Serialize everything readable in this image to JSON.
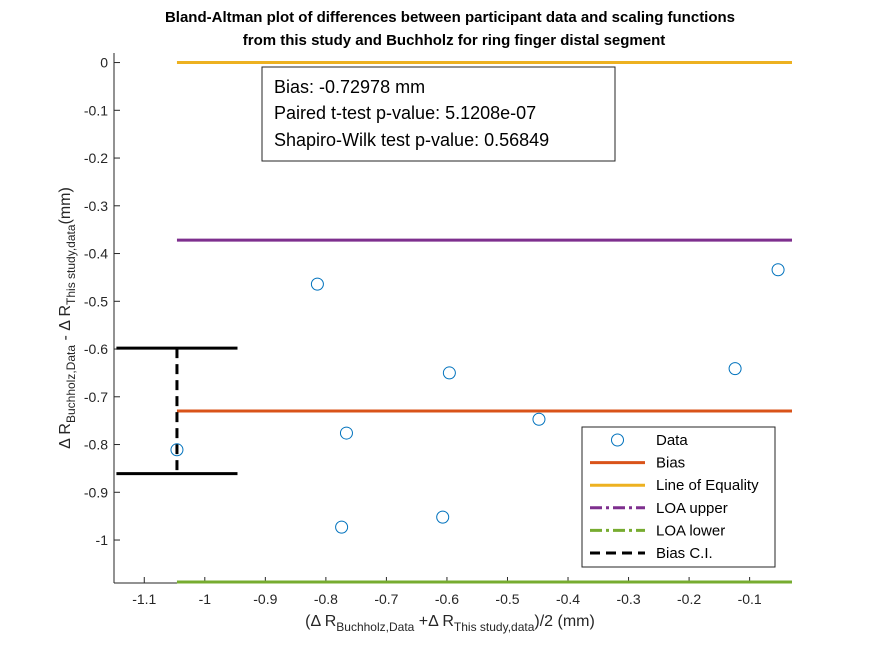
{
  "chart_data": {
    "type": "scatter",
    "title_lines": [
      "Bland-Altman plot of differences between participant data and scaling functions",
      "from this study and Buchholz for ring finger distal segment"
    ],
    "xlabel": {
      "open": "(Δ R",
      "sub1": "Buchholz,Data",
      "mid": " +Δ R",
      "sub2": "This study,data",
      "close": ")/2 (mm)"
    },
    "ylabel": {
      "pre1": "Δ R",
      "sub1": "Buchholz,Data",
      "pre2": " - Δ R",
      "sub2": "This study,data",
      "post": "(mm)"
    },
    "xlim": [
      -1.15,
      -0.03
    ],
    "ylim": [
      -1.09,
      0.02
    ],
    "xticks": [
      -1.1,
      -1,
      -0.9,
      -0.8,
      -0.7,
      -0.6,
      -0.5,
      -0.4,
      -0.3,
      -0.2,
      -0.1
    ],
    "xtick_labels": [
      "-1.1",
      "-1",
      "-0.9",
      "-0.8",
      "-0.7",
      "-0.6",
      "-0.5",
      "-0.4",
      "-0.3",
      "-0.2",
      "-0.1"
    ],
    "yticks": [
      0,
      -0.1,
      -0.2,
      -0.3,
      -0.4,
      -0.5,
      -0.6,
      -0.7,
      -0.8,
      -0.9,
      -1
    ],
    "ytick_labels": [
      "0",
      "-0.1",
      "-0.2",
      "-0.3",
      "-0.4",
      "-0.5",
      "-0.6",
      "-0.7",
      "-0.8",
      "-0.9",
      "-1"
    ],
    "points": [
      {
        "x": -1.046,
        "y": -0.811
      },
      {
        "x": -0.814,
        "y": -0.464
      },
      {
        "x": -0.774,
        "y": -0.973
      },
      {
        "x": -0.766,
        "y": -0.776
      },
      {
        "x": -0.607,
        "y": -0.952
      },
      {
        "x": -0.596,
        "y": -0.65
      },
      {
        "x": -0.448,
        "y": -0.747
      },
      {
        "x": -0.124,
        "y": -0.641
      },
      {
        "x": -0.053,
        "y": -0.434
      }
    ],
    "bias": -0.72978,
    "line_of_equality": 0,
    "loa_upper": -0.372,
    "loa_lower": -1.088,
    "line_x_range": [
      -1.046,
      -0.03
    ],
    "bias_ci": {
      "x": -1.046,
      "low": -0.861,
      "high": -0.598,
      "cap_half_width": 0.1
    },
    "annotation": [
      "Bias: -0.72978 mm",
      "Paired t-test p-value: 5.1208e-07",
      "Shapiro-Wilk test p-value: 0.56849"
    ],
    "legend": {
      "placement": "bottom-right",
      "entries": [
        {
          "label": "Data",
          "kind": "marker",
          "color": "#0072BD"
        },
        {
          "label": "Bias",
          "kind": "solid",
          "color": "#D95319"
        },
        {
          "label": "Line of Equality",
          "kind": "solid",
          "color": "#EDB120"
        },
        {
          "label": "LOA upper",
          "kind": "dashdot",
          "color": "#7E2F8E"
        },
        {
          "label": "LOA lower",
          "kind": "dashdot",
          "color": "#77AC30"
        },
        {
          "label": "Bias C.I.",
          "kind": "dashed",
          "color": "#000000"
        }
      ]
    },
    "colors": {
      "data": "#0072BD",
      "bias": "#D95319",
      "equality": "#EDB120",
      "loa_upper": "#7E2F8E",
      "loa_lower": "#77AC30",
      "ci": "#000000"
    },
    "grid": false
  }
}
